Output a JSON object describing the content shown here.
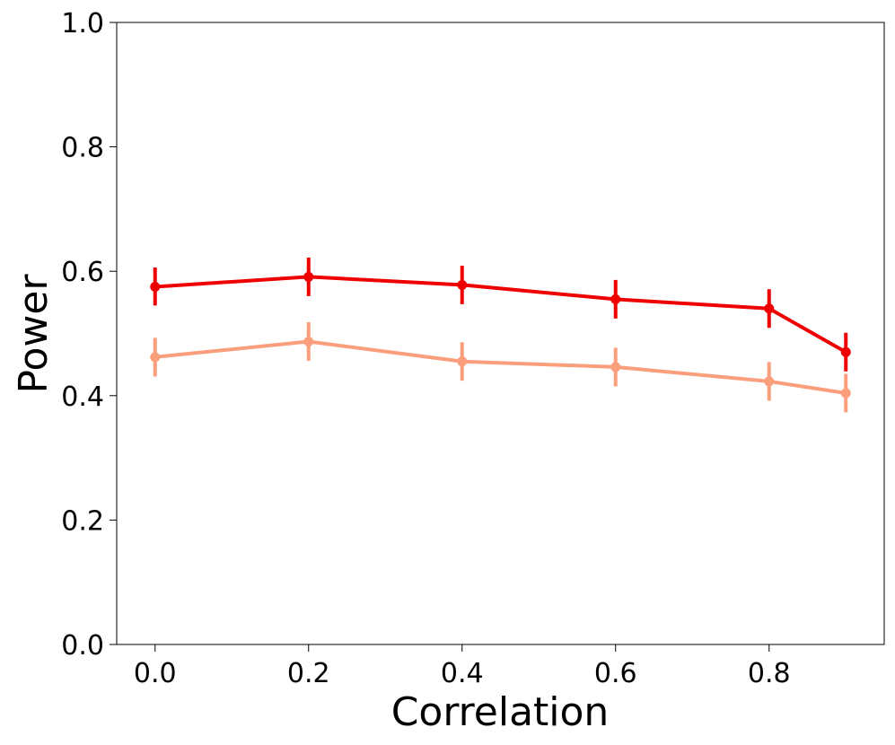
{
  "chart_data": {
    "type": "line",
    "title": "",
    "xlabel": "Correlation",
    "ylabel": "Power",
    "xlim": [
      -0.05,
      0.95
    ],
    "ylim": [
      0.0,
      1.0
    ],
    "xticks": [
      0.0,
      0.2,
      0.4,
      0.6,
      0.8
    ],
    "xtick_labels": [
      "0.0",
      "0.2",
      "0.4",
      "0.6",
      "0.8"
    ],
    "yticks": [
      0.0,
      0.2,
      0.4,
      0.6,
      0.8,
      1.0
    ],
    "ytick_labels": [
      "0.0",
      "0.2",
      "0.4",
      "0.6",
      "0.8",
      "1.0"
    ],
    "grid": false,
    "legend": "none",
    "x": [
      0.0,
      0.2,
      0.4,
      0.6,
      0.8,
      0.9
    ],
    "series": [
      {
        "name": "series-1",
        "color": "#ee0000",
        "values": [
          0.575,
          0.591,
          0.578,
          0.555,
          0.54,
          0.47
        ],
        "err_low": [
          0.545,
          0.56,
          0.547,
          0.524,
          0.509,
          0.439
        ],
        "err_high": [
          0.606,
          0.622,
          0.609,
          0.586,
          0.571,
          0.501
        ]
      },
      {
        "name": "series-2",
        "color": "#fa9e7c",
        "values": [
          0.462,
          0.487,
          0.455,
          0.446,
          0.423,
          0.404
        ],
        "err_low": [
          0.431,
          0.456,
          0.424,
          0.415,
          0.392,
          0.373
        ],
        "err_high": [
          0.493,
          0.518,
          0.486,
          0.477,
          0.454,
          0.435
        ]
      }
    ]
  }
}
